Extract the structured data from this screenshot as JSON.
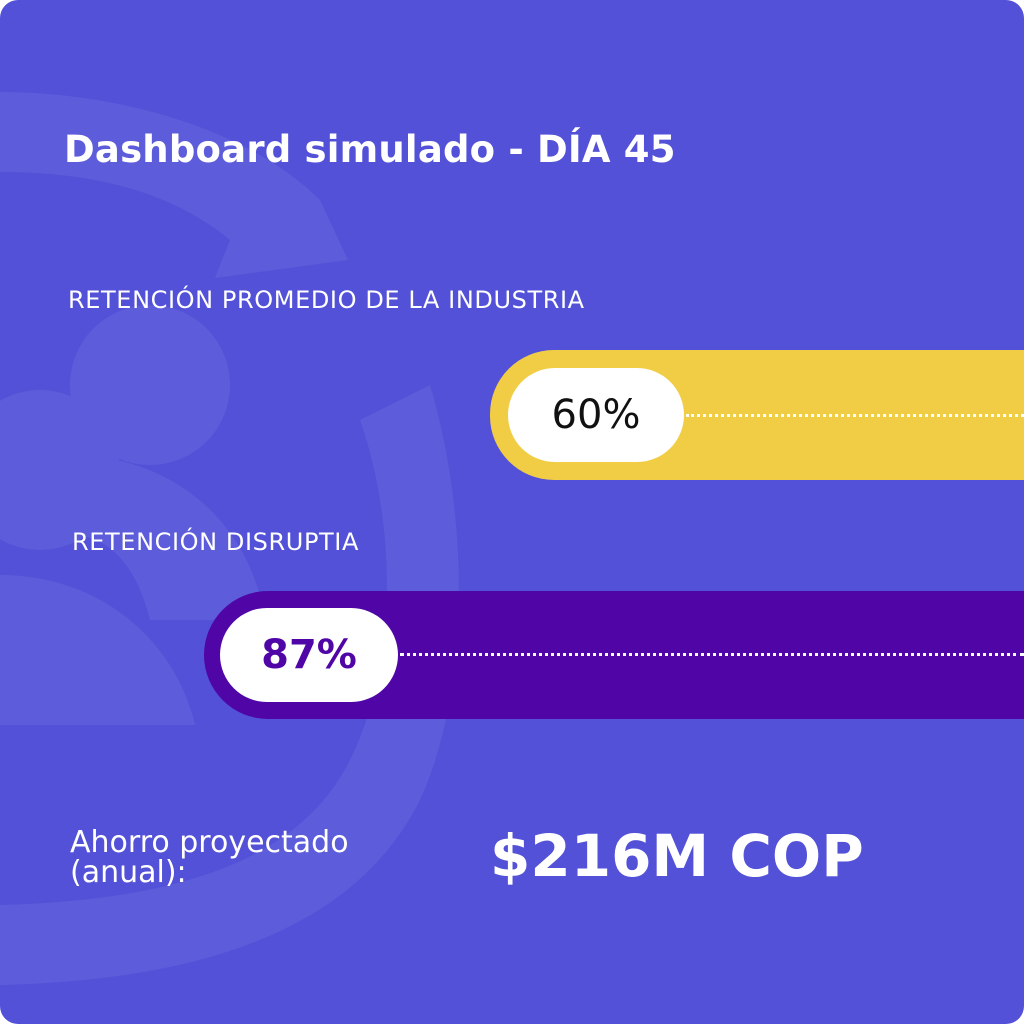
{
  "dashboard": {
    "title": "Dashboard simulado - DÍA 45",
    "colors": {
      "background": "#5351d7",
      "industry_bar": "#f1cd45",
      "disruptia_bar": "#5005a6",
      "text": "#ffffff"
    },
    "metrics": [
      {
        "label": "RETENCIÓN PROMEDIO DE LA INDUSTRIA",
        "value": "60%",
        "value_color": "#111111"
      },
      {
        "label": "RETENCIÓN DISRUPTIA",
        "value": "87%",
        "value_color": "#5005a6"
      }
    ],
    "savings": {
      "label": "Ahorro proyectado (anual):",
      "value": "$216M COP"
    }
  }
}
